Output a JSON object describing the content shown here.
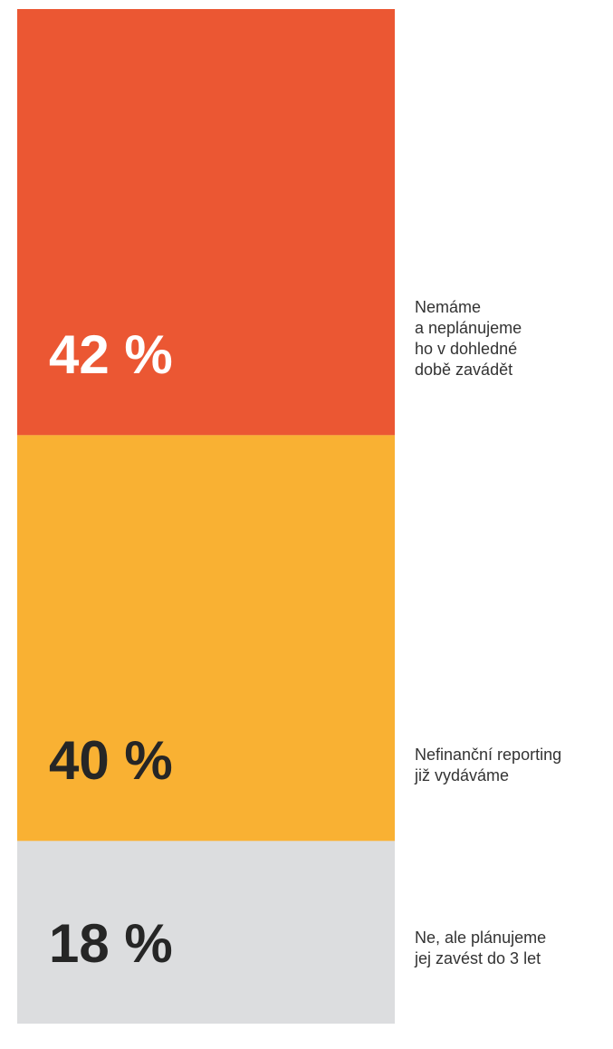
{
  "chart_data": {
    "type": "stacked_bar",
    "categories": [
      "Nemáme\na neplánujeme\nho v dohledné\ndobě zavádět",
      "Nefinanční reporting\njiž vydáváme",
      "Ne, ale plánujeme\njej zavést do 3 let"
    ],
    "values": [
      42,
      40,
      18
    ],
    "value_labels": [
      "42 %",
      "40 %",
      "18 %"
    ],
    "colors": [
      "#eb5733",
      "#f9b133",
      "#dcdddf"
    ],
    "label_colors": [
      "#ffffff",
      "#262626",
      "#262626"
    ]
  }
}
